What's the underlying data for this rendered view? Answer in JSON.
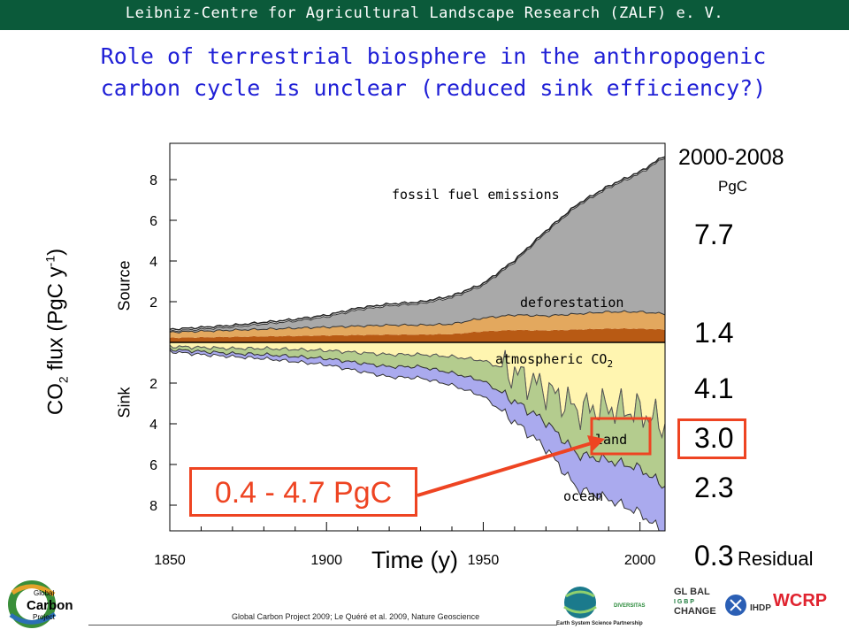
{
  "header": {
    "org": "Leibniz-Centre for Agricultural Landscape Research (ZALF) e. V."
  },
  "title": {
    "line1": "Role of terrestrial biosphere in the anthropogenic",
    "line2": "carbon cycle is unclear (reduced sink efficiency?)"
  },
  "chart_data": {
    "type": "area",
    "xlabel": "Time (y)",
    "ylabel": "CO2 flux (PgC y-1)",
    "source_label": "Source",
    "sink_label": "Sink",
    "xlim": [
      1850,
      2008
    ],
    "ylim": [
      -10,
      10
    ],
    "x_ticks": [
      1850,
      1900,
      1950,
      2000
    ],
    "y_tick_labels_source": [
      2,
      4,
      6,
      8
    ],
    "y_tick_labels_sink": [
      2,
      4,
      6,
      8
    ],
    "annotations": {
      "fossil": "fossil fuel emissions",
      "deforestation": "deforestation",
      "atmospheric": "atmospheric CO",
      "atmospheric_sub": "2",
      "land": "land",
      "ocean": "ocean"
    },
    "colors": {
      "fossil": "#a9a9a9",
      "deforestation_light": "#e3a85e",
      "deforestation_dark": "#b85a14",
      "atmospheric": "#fff5b0",
      "land": "#b4cc8e",
      "ocean": "#aaaaee",
      "highlight": "#ee4422"
    },
    "series": [
      {
        "name": "fossil fuel emissions",
        "x": [
          1850,
          1860,
          1870,
          1880,
          1890,
          1900,
          1910,
          1920,
          1930,
          1940,
          1950,
          1960,
          1970,
          1980,
          1990,
          2000,
          2008
        ],
        "values": [
          0.05,
          0.1,
          0.15,
          0.25,
          0.35,
          0.5,
          0.8,
          0.95,
          1.05,
          1.3,
          1.6,
          2.6,
          4.1,
          5.3,
          6.1,
          6.8,
          7.7
        ]
      },
      {
        "name": "deforestation",
        "x": [
          1850,
          1860,
          1870,
          1880,
          1890,
          1900,
          1910,
          1920,
          1930,
          1940,
          1950,
          1960,
          1970,
          1980,
          1990,
          2000,
          2008
        ],
        "values": [
          0.5,
          0.55,
          0.6,
          0.65,
          0.7,
          0.75,
          0.8,
          0.85,
          0.85,
          0.9,
          1.2,
          1.35,
          1.3,
          1.4,
          1.5,
          1.5,
          1.4
        ]
      },
      {
        "name": "atmospheric CO2",
        "x": [
          1850,
          1860,
          1870,
          1880,
          1890,
          1900,
          1910,
          1920,
          1930,
          1940,
          1950,
          1960,
          1970,
          1980,
          1990,
          2000,
          2008
        ],
        "values": [
          0.2,
          0.25,
          0.3,
          0.3,
          0.35,
          0.4,
          0.5,
          0.6,
          0.6,
          0.7,
          0.9,
          1.5,
          2.3,
          3.3,
          3.2,
          3.4,
          4.1
        ]
      },
      {
        "name": "land",
        "x": [
          1850,
          1860,
          1870,
          1880,
          1890,
          1900,
          1910,
          1920,
          1930,
          1940,
          1950,
          1960,
          1970,
          1980,
          1990,
          2000,
          2008
        ],
        "values": [
          0.15,
          0.2,
          0.25,
          0.3,
          0.35,
          0.4,
          0.5,
          0.6,
          0.6,
          0.8,
          1.0,
          1.4,
          1.6,
          2.2,
          2.6,
          2.8,
          3.0
        ]
      },
      {
        "name": "ocean",
        "x": [
          1850,
          1860,
          1870,
          1880,
          1890,
          1900,
          1910,
          1920,
          1930,
          1940,
          1950,
          1960,
          1970,
          1980,
          1990,
          2000,
          2008
        ],
        "values": [
          0.1,
          0.15,
          0.15,
          0.2,
          0.25,
          0.3,
          0.4,
          0.5,
          0.55,
          0.6,
          0.75,
          1.0,
          1.3,
          1.7,
          1.9,
          2.2,
          2.3
        ]
      }
    ]
  },
  "side_panel": {
    "period": "2000-2008",
    "unit": "PgC",
    "values": [
      "7.7",
      "1.4",
      "4.1",
      "3.0",
      "2.3",
      "0.3"
    ],
    "residual_label": "Residual"
  },
  "callout": {
    "text": "0.4 - 4.7 PgC"
  },
  "footer": {
    "citation": "Global Carbon Project 2009; Le Quéré et al. 2009, Nature Geoscience"
  },
  "logos": {
    "gcp": {
      "line1": "Global",
      "line2": "Carbon",
      "line3": "Project"
    },
    "essp": "Earth System Science Partnership",
    "diversitas": "DIVERSITAS",
    "global_change": [
      "GL BAL",
      "I G B P",
      "CHANGE"
    ],
    "ihdp": "IHDP",
    "wcrp": "WCRP"
  }
}
